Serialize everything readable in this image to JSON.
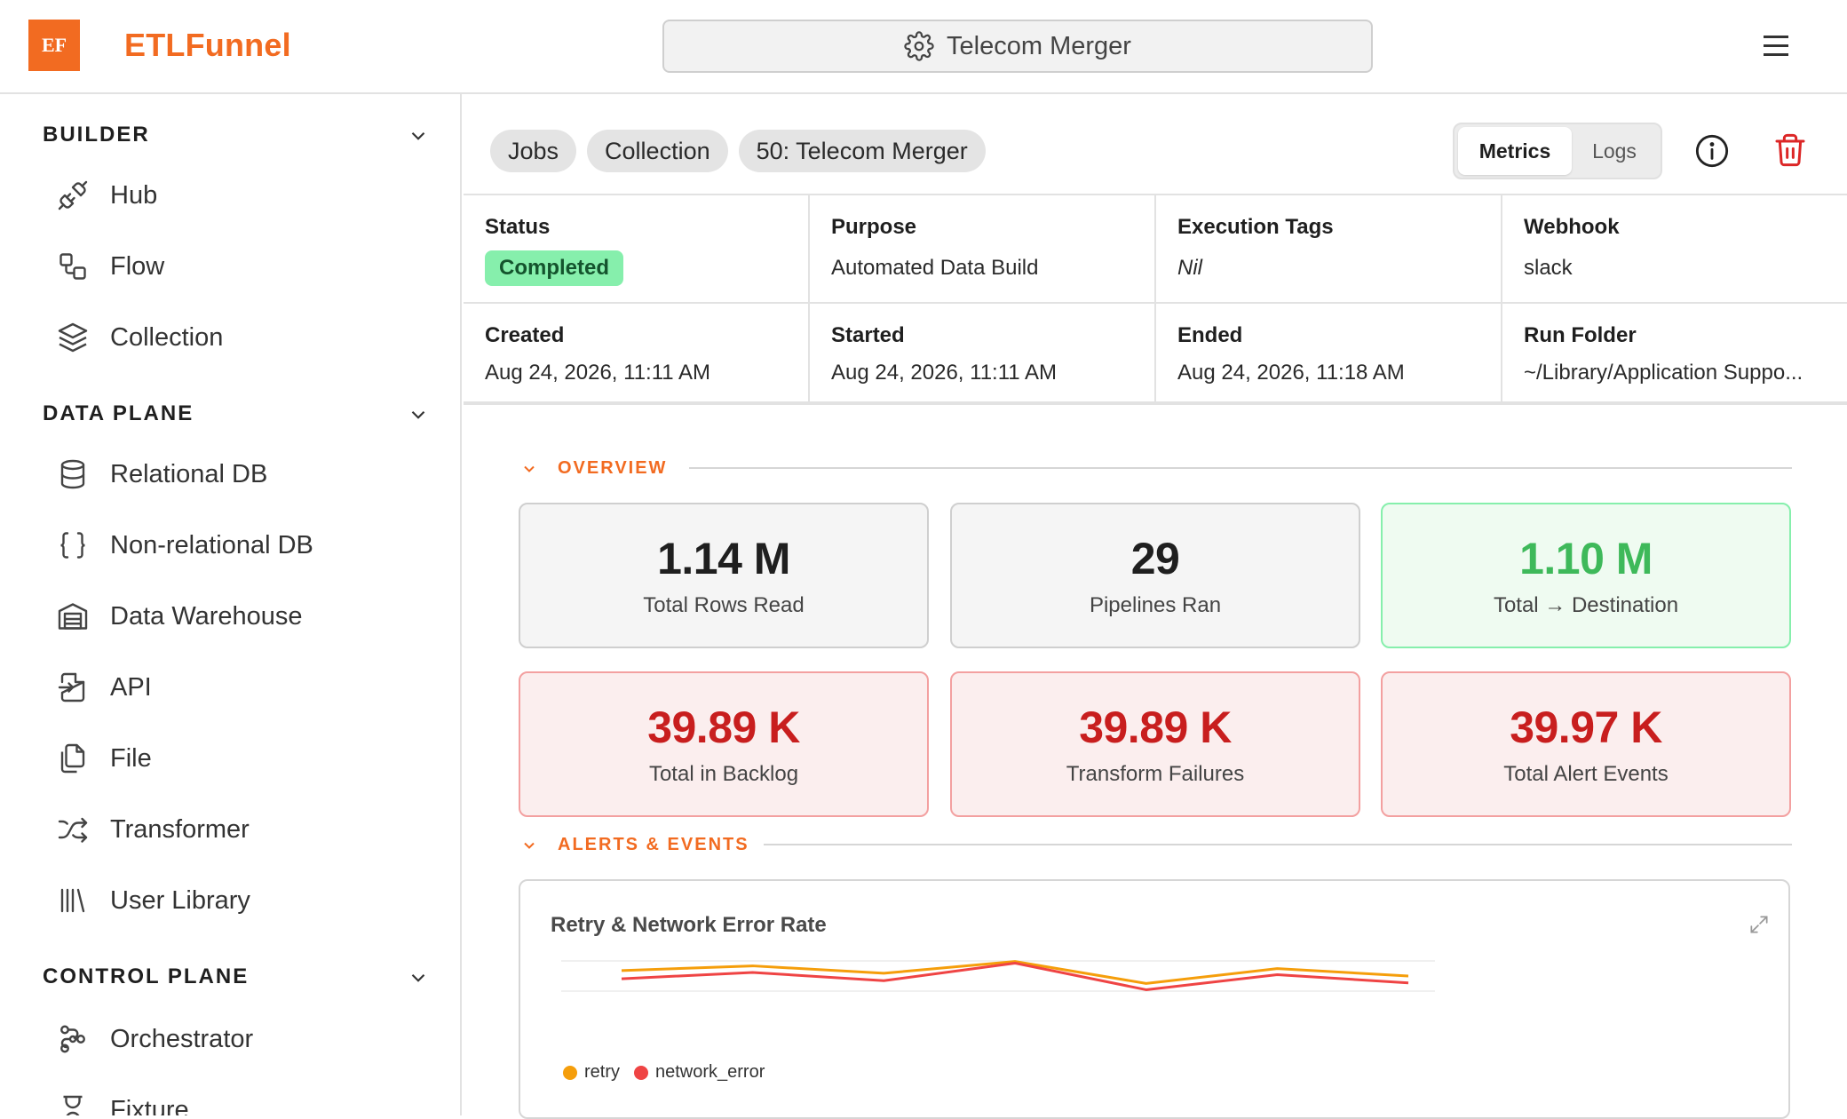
{
  "app": {
    "logo_text": "EF",
    "brand": "ETLFunnel"
  },
  "search": {
    "label": "Telecom Merger",
    "icon": "gear-icon"
  },
  "sidebar": {
    "sections": [
      {
        "title": "BUILDER",
        "items": [
          {
            "label": "Hub",
            "icon": "plug-icon"
          },
          {
            "label": "Flow",
            "icon": "flow-icon"
          },
          {
            "label": "Collection",
            "icon": "layers-icon"
          }
        ]
      },
      {
        "title": "DATA PLANE",
        "items": [
          {
            "label": "Relational DB",
            "icon": "database-icon"
          },
          {
            "label": "Non-relational DB",
            "icon": "braces-icon"
          },
          {
            "label": "Data Warehouse",
            "icon": "warehouse-icon"
          },
          {
            "label": "API",
            "icon": "file-import-icon"
          },
          {
            "label": "File",
            "icon": "files-icon"
          },
          {
            "label": "Transformer",
            "icon": "shuffle-icon"
          },
          {
            "label": "User Library",
            "icon": "library-icon"
          }
        ]
      },
      {
        "title": "CONTROL PLANE",
        "items": [
          {
            "label": "Orchestrator",
            "icon": "workflow-icon"
          },
          {
            "label": "Fixture",
            "icon": "hourglass-icon"
          }
        ]
      }
    ]
  },
  "breadcrumbs": [
    "Jobs",
    "Collection",
    "50: Telecom Merger"
  ],
  "tabs": {
    "metrics": "Metrics",
    "logs": "Logs",
    "active": "Metrics"
  },
  "details": {
    "status_label": "Status",
    "status_value": "Completed",
    "purpose_label": "Purpose",
    "purpose_value": "Automated Data Build",
    "tags_label": "Execution Tags",
    "tags_value": "Nil",
    "webhook_label": "Webhook",
    "webhook_value": "slack",
    "created_label": "Created",
    "created_value": "Aug 24, 2026, 11:11 AM",
    "started_label": "Started",
    "started_value": "Aug 24, 2026, 11:11 AM",
    "ended_label": "Ended",
    "ended_value": "Aug 24, 2026, 11:18 AM",
    "folder_label": "Run Folder",
    "folder_value": "~/Library/Application Suppo..."
  },
  "overview": {
    "title": "OVERVIEW",
    "cards": [
      {
        "value": "1.14 M",
        "label": "Total Rows Read",
        "tone": "neutral"
      },
      {
        "value": "29",
        "label": "Pipelines Ran",
        "tone": "neutral"
      },
      {
        "value": "1.10 M",
        "label": "Total → Destination",
        "tone": "green"
      },
      {
        "value": "39.89 K",
        "label": "Total in Backlog",
        "tone": "red"
      },
      {
        "value": "39.89 K",
        "label": "Transform Failures",
        "tone": "red"
      },
      {
        "value": "39.97 K",
        "label": "Total Alert Events",
        "tone": "red"
      }
    ]
  },
  "alerts": {
    "title": "ALERTS & EVENTS"
  },
  "chart": {
    "title": "Retry & Network Error Rate",
    "legend": [
      "retry",
      "network_error"
    ]
  },
  "colors": {
    "accent": "#f26b21",
    "retry": "#f59e0b",
    "network_error": "#ef4444",
    "success": "#86efac",
    "danger": "#c81e1e"
  },
  "chart_data": {
    "type": "line",
    "title": "Retry & Network Error Rate",
    "x": [
      1,
      2,
      3,
      4,
      5,
      6,
      7
    ],
    "series": [
      {
        "name": "retry",
        "values": [
          0.65,
          0.82,
          0.55,
          0.98,
          0.18,
          0.72,
          0.45
        ]
      },
      {
        "name": "network_error",
        "values": [
          0.35,
          0.58,
          0.28,
          0.92,
          -0.05,
          0.5,
          0.2
        ]
      }
    ],
    "ylim": [
      -0.1,
      1.0
    ],
    "grid": true,
    "legend": "bottom-left"
  }
}
